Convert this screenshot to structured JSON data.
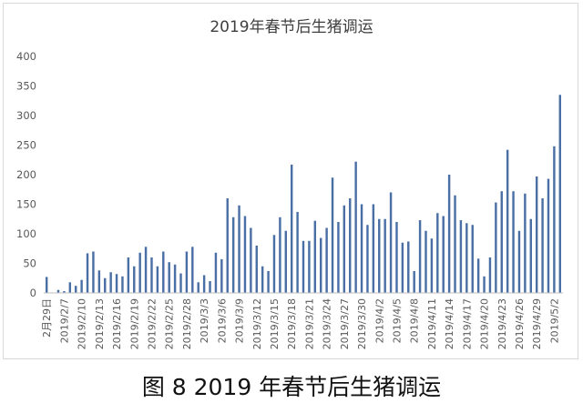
{
  "caption": "图 8 2019 年春节后生猪调运",
  "chart_data": {
    "type": "bar",
    "title": "2019年春节后生猪调运",
    "xlabel": "",
    "ylabel": "",
    "ylim": [
      0,
      400
    ],
    "yticks": [
      0,
      50,
      100,
      150,
      200,
      250,
      300,
      350,
      400
    ],
    "grid": false,
    "legend": "none",
    "bar_color": "#4a6fa5",
    "categories": [
      "2月29日",
      "2019/2/5",
      "2019/2/6",
      "2019/2/7",
      "2019/2/8",
      "2019/2/9",
      "2019/2/10",
      "2019/2/11",
      "2019/2/12",
      "2019/2/13",
      "2019/2/14",
      "2019/2/15",
      "2019/2/16",
      "2019/2/17",
      "2019/2/18",
      "2019/2/19",
      "2019/2/20",
      "2019/2/21",
      "2019/2/22",
      "2019/2/23",
      "2019/2/24",
      "2019/2/25",
      "2019/2/26",
      "2019/2/27",
      "2019/2/28",
      "2019/3/1",
      "2019/3/2",
      "2019/3/3",
      "2019/3/4",
      "2019/3/5",
      "2019/3/6",
      "2019/3/7",
      "2019/3/8",
      "2019/3/9",
      "2019/3/10",
      "2019/3/11",
      "2019/3/12",
      "2019/3/13",
      "2019/3/14",
      "2019/3/15",
      "2019/3/16",
      "2019/3/17",
      "2019/3/18",
      "2019/3/19",
      "2019/3/20",
      "2019/3/21",
      "2019/3/22",
      "2019/3/23",
      "2019/3/24",
      "2019/3/25",
      "2019/3/26",
      "2019/3/27",
      "2019/3/28",
      "2019/3/29",
      "2019/3/30",
      "2019/3/31",
      "2019/4/1",
      "2019/4/2",
      "2019/4/3",
      "2019/4/4",
      "2019/4/5",
      "2019/4/6",
      "2019/4/7",
      "2019/4/8",
      "2019/4/9",
      "2019/4/10",
      "2019/4/11",
      "2019/4/12",
      "2019/4/13",
      "2019/4/14",
      "2019/4/15",
      "2019/4/16",
      "2019/4/17",
      "2019/4/18",
      "2019/4/19",
      "2019/4/20",
      "2019/4/21",
      "2019/4/22",
      "2019/4/23",
      "2019/4/24",
      "2019/4/25",
      "2019/4/26",
      "2019/4/27",
      "2019/4/28",
      "2019/4/29",
      "2019/4/30",
      "2019/5/1",
      "2019/5/2",
      "2019/5/3"
    ],
    "tick_labels_shown": [
      "2月29日",
      "2019/2/7",
      "2019/2/10",
      "2019/2/13",
      "2019/2/16",
      "2019/2/19",
      "2019/2/22",
      "2019/2/25",
      "2019/2/28",
      "2019/3/3",
      "2019/3/6",
      "2019/3/9",
      "2019/3/12",
      "2019/3/15",
      "2019/3/18",
      "2019/3/21",
      "2019/3/24",
      "2019/3/27",
      "2019/3/30",
      "2019/4/2",
      "2019/4/5",
      "2019/4/8",
      "2019/4/11",
      "2019/4/14",
      "2019/4/17",
      "2019/4/20",
      "2019/4/23",
      "2019/4/26",
      "2019/4/29",
      "2019/5/2"
    ],
    "values": [
      27,
      0,
      5,
      3,
      18,
      12,
      22,
      67,
      70,
      38,
      25,
      35,
      32,
      28,
      60,
      45,
      68,
      78,
      60,
      45,
      70,
      52,
      48,
      33,
      70,
      78,
      18,
      30,
      20,
      68,
      57,
      160,
      128,
      148,
      130,
      110,
      80,
      45,
      37,
      98,
      128,
      105,
      217,
      137,
      88,
      88,
      122,
      93,
      110,
      195,
      120,
      148,
      160,
      222,
      150,
      115,
      150,
      125,
      125,
      170,
      120,
      85,
      87,
      37,
      123,
      105,
      92,
      135,
      130,
      200,
      165,
      123,
      118,
      115,
      58,
      28,
      60,
      153,
      172,
      242,
      172,
      105,
      168,
      125,
      197,
      160,
      193,
      248,
      335
    ]
  }
}
